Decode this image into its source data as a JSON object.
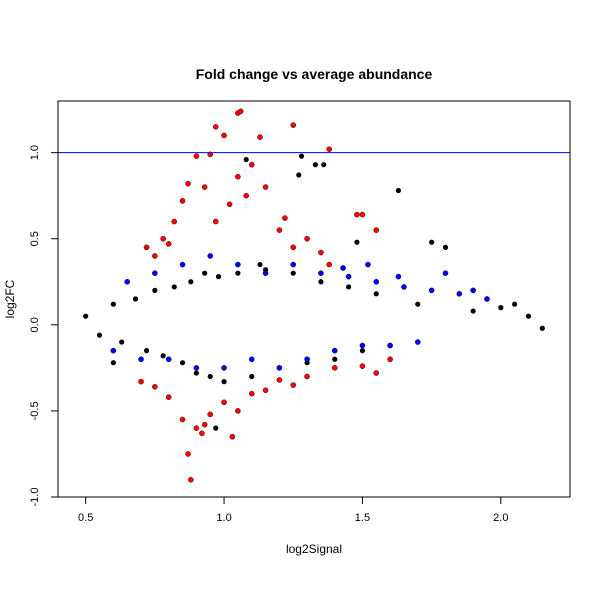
{
  "chart_data": {
    "type": "scatter",
    "title": "Fold change vs average abundance",
    "xlabel": "log2Signal",
    "ylabel": "log2FC",
    "xlim": [
      0.4,
      2.25
    ],
    "ylim": [
      -1.0,
      1.3
    ],
    "x_ticks": [
      "0.5",
      "1.0",
      "1.5",
      "2.0"
    ],
    "y_ticks": [
      "-1.0",
      "-0.5",
      "0.0",
      "0.5",
      "1.0"
    ],
    "reference_lines": [
      1.0,
      -1.0
    ],
    "grid": false,
    "colors": {
      "base": "#000000",
      "mid_fold_change": "#0000ff",
      "high_fold_change": "#ff0000",
      "reference_line": "#0000ff"
    },
    "series": [
      {
        "color": "black",
        "points": [
          [
            0.5,
            0.05
          ],
          [
            0.55,
            -0.06
          ],
          [
            0.6,
            0.12
          ],
          [
            0.63,
            -0.1
          ],
          [
            0.68,
            0.15
          ],
          [
            0.72,
            -0.15
          ],
          [
            0.75,
            0.2
          ],
          [
            0.78,
            -0.18
          ],
          [
            0.82,
            0.22
          ],
          [
            0.85,
            -0.22
          ],
          [
            0.88,
            0.25
          ],
          [
            0.9,
            -0.28
          ],
          [
            0.93,
            0.3
          ],
          [
            0.95,
            -0.3
          ],
          [
            0.98,
            0.28
          ],
          [
            1.0,
            -0.33
          ],
          [
            1.05,
            0.3
          ],
          [
            1.1,
            -0.3
          ],
          [
            1.15,
            0.32
          ],
          [
            1.2,
            -0.25
          ],
          [
            1.25,
            0.3
          ],
          [
            1.3,
            -0.22
          ],
          [
            1.35,
            0.25
          ],
          [
            1.4,
            -0.2
          ],
          [
            1.45,
            0.22
          ],
          [
            1.5,
            -0.15
          ],
          [
            1.55,
            0.18
          ],
          [
            1.6,
            -0.12
          ],
          [
            1.7,
            0.12
          ],
          [
            1.75,
            0.48
          ],
          [
            1.8,
            0.45
          ],
          [
            1.9,
            0.08
          ],
          [
            2.0,
            0.1
          ],
          [
            2.05,
            0.12
          ],
          [
            2.1,
            0.05
          ],
          [
            2.15,
            -0.02
          ],
          [
            1.08,
            0.96
          ],
          [
            1.13,
            0.35
          ],
          [
            1.28,
            0.98
          ],
          [
            1.33,
            0.93
          ],
          [
            1.27,
            0.87
          ],
          [
            1.36,
            0.93
          ],
          [
            1.63,
            0.78
          ],
          [
            0.97,
            -0.6
          ],
          [
            1.48,
            0.48
          ],
          [
            0.6,
            -0.22
          ]
        ]
      },
      {
        "color": "blue",
        "points": [
          [
            0.6,
            -0.15
          ],
          [
            0.65,
            0.25
          ],
          [
            0.7,
            -0.2
          ],
          [
            0.75,
            0.3
          ],
          [
            0.8,
            -0.2
          ],
          [
            0.85,
            0.35
          ],
          [
            0.9,
            -0.25
          ],
          [
            0.95,
            0.4
          ],
          [
            1.0,
            -0.25
          ],
          [
            1.05,
            0.35
          ],
          [
            1.1,
            -0.2
          ],
          [
            1.15,
            0.3
          ],
          [
            1.2,
            -0.25
          ],
          [
            1.25,
            0.35
          ],
          [
            1.3,
            -0.2
          ],
          [
            1.35,
            0.3
          ],
          [
            1.4,
            -0.15
          ],
          [
            1.45,
            0.28
          ],
          [
            1.5,
            -0.12
          ],
          [
            1.55,
            0.25
          ],
          [
            1.6,
            -0.12
          ],
          [
            1.65,
            0.22
          ],
          [
            1.7,
            -0.1
          ],
          [
            1.75,
            0.2
          ],
          [
            1.8,
            0.3
          ],
          [
            1.85,
            0.18
          ],
          [
            1.9,
            0.2
          ],
          [
            1.95,
            0.15
          ],
          [
            1.52,
            0.35
          ],
          [
            1.43,
            0.33
          ],
          [
            1.63,
            0.28
          ]
        ]
      },
      {
        "color": "red",
        "points": [
          [
            0.9,
            0.98
          ],
          [
            0.95,
            0.99
          ],
          [
            0.97,
            1.15
          ],
          [
            1.0,
            1.1
          ],
          [
            1.05,
            1.23
          ],
          [
            1.06,
            1.24
          ],
          [
            1.1,
            0.93
          ],
          [
            1.13,
            1.09
          ],
          [
            1.25,
            1.16
          ],
          [
            1.38,
            1.02
          ],
          [
            0.82,
            0.6
          ],
          [
            0.85,
            0.72
          ],
          [
            0.87,
            0.82
          ],
          [
            0.93,
            0.8
          ],
          [
            0.97,
            0.6
          ],
          [
            1.02,
            0.7
          ],
          [
            1.05,
            0.86
          ],
          [
            1.08,
            0.75
          ],
          [
            1.15,
            0.8
          ],
          [
            1.2,
            0.55
          ],
          [
            1.22,
            0.62
          ],
          [
            1.25,
            0.45
          ],
          [
            1.3,
            0.5
          ],
          [
            1.35,
            0.42
          ],
          [
            1.38,
            0.35
          ],
          [
            1.48,
            0.64
          ],
          [
            1.5,
            0.64
          ],
          [
            1.55,
            0.55
          ],
          [
            0.72,
            0.45
          ],
          [
            0.75,
            0.4
          ],
          [
            0.78,
            0.5
          ],
          [
            0.8,
            0.47
          ],
          [
            0.7,
            -0.33
          ],
          [
            0.75,
            -0.36
          ],
          [
            0.8,
            -0.42
          ],
          [
            0.85,
            -0.55
          ],
          [
            0.9,
            -0.6
          ],
          [
            0.92,
            -0.63
          ],
          [
            0.95,
            -0.52
          ],
          [
            1.0,
            -0.45
          ],
          [
            1.03,
            -0.65
          ],
          [
            1.05,
            -0.5
          ],
          [
            1.1,
            -0.4
          ],
          [
            1.15,
            -0.38
          ],
          [
            1.2,
            -0.32
          ],
          [
            1.25,
            -0.35
          ],
          [
            1.3,
            -0.3
          ],
          [
            1.4,
            -0.25
          ],
          [
            1.5,
            -0.24
          ],
          [
            1.6,
            -0.2
          ],
          [
            0.88,
            -0.9
          ],
          [
            0.87,
            -0.75
          ],
          [
            0.93,
            -0.58
          ],
          [
            1.55,
            -0.28
          ]
        ]
      }
    ]
  }
}
